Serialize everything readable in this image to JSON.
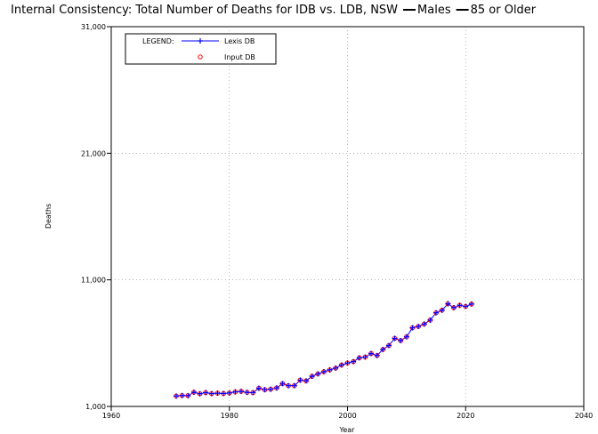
{
  "chart_data": {
    "type": "line",
    "title": "Internal Consistency: Total Number of Deaths for IDB vs. LDB, NSW",
    "title_suffix": [
      {
        "label": "Males"
      },
      {
        "label": "85 or Older"
      }
    ],
    "xlabel": "Year",
    "ylabel": "Deaths",
    "xlim": [
      1960,
      2040
    ],
    "ylim": [
      1000,
      31000
    ],
    "x_ticks": [
      {
        "value": 1960,
        "label": "1960"
      },
      {
        "value": 1980,
        "label": "1980"
      },
      {
        "value": 2000,
        "label": "2000"
      },
      {
        "value": 2020,
        "label": "2020"
      },
      {
        "value": 2040,
        "label": "2040"
      }
    ],
    "y_ticks": [
      {
        "value": 1000,
        "label": "1,000"
      },
      {
        "value": 11000,
        "label": "11,000"
      },
      {
        "value": 21000,
        "label": "21,000"
      },
      {
        "value": 31000,
        "label": "31,000"
      }
    ],
    "grid": true,
    "legend": {
      "title": "LEGEND:",
      "placement": "top-left",
      "entries": [
        {
          "label": "Lexis DB",
          "series": 0
        },
        {
          "label": "Input DB",
          "series": 1
        }
      ]
    },
    "x": [
      1971,
      1972,
      1973,
      1974,
      1975,
      1976,
      1977,
      1978,
      1979,
      1980,
      1981,
      1982,
      1983,
      1984,
      1985,
      1986,
      1987,
      1988,
      1989,
      1990,
      1991,
      1992,
      1993,
      1994,
      1995,
      1996,
      1997,
      1998,
      1999,
      2000,
      2001,
      2002,
      2003,
      2004,
      2005,
      2006,
      2007,
      2008,
      2009,
      2010,
      2011,
      2012,
      2013,
      2014,
      2015,
      2016,
      2017,
      2018,
      2019,
      2020,
      2021
    ],
    "series": [
      {
        "name": "Lexis DB",
        "color": "#0000ff",
        "marker": "plus",
        "values": [
          1820,
          1860,
          1850,
          2120,
          2000,
          2090,
          2010,
          2050,
          2020,
          2060,
          2150,
          2190,
          2110,
          2090,
          2440,
          2320,
          2360,
          2460,
          2800,
          2640,
          2640,
          3080,
          3020,
          3380,
          3570,
          3740,
          3890,
          4030,
          4270,
          4430,
          4540,
          4840,
          4900,
          5180,
          5020,
          5500,
          5810,
          6380,
          6200,
          6500,
          7210,
          7320,
          7510,
          7820,
          8400,
          8600,
          9110,
          8800,
          8990,
          8900,
          9090
        ]
      },
      {
        "name": "Input DB",
        "color": "#ff0000",
        "marker": "circle",
        "values": [
          1820,
          1860,
          1850,
          2120,
          2000,
          2090,
          2010,
          2050,
          2020,
          2060,
          2150,
          2190,
          2110,
          2090,
          2440,
          2320,
          2360,
          2460,
          2800,
          2640,
          2640,
          3080,
          3020,
          3380,
          3570,
          3740,
          3890,
          4030,
          4270,
          4430,
          4540,
          4840,
          4900,
          5180,
          5020,
          5500,
          5810,
          6380,
          6200,
          6500,
          7210,
          7320,
          7510,
          7820,
          8400,
          8600,
          9110,
          8800,
          8990,
          8900,
          9090
        ]
      }
    ]
  }
}
